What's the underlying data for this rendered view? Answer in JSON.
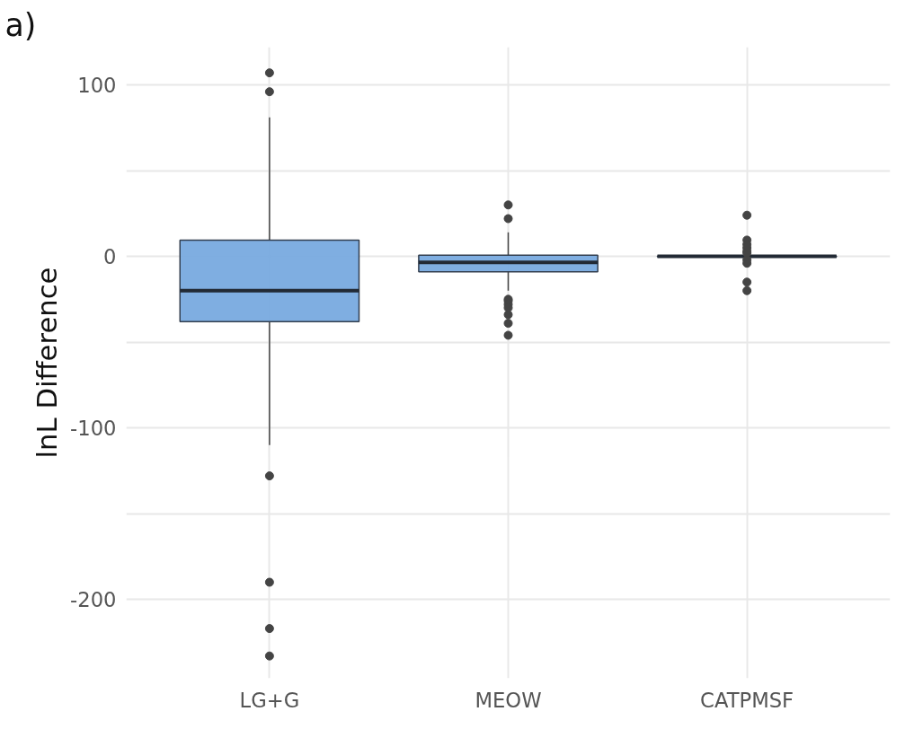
{
  "chart_data": {
    "type": "box",
    "ylabel": "lnL Difference",
    "annotations": [
      "a)"
    ],
    "categories": [
      "LG+G",
      "MEOW",
      "CATPMSF"
    ],
    "color": "#78aadf",
    "boxes": [
      {
        "low": -110,
        "q1": -38,
        "median": -20,
        "q3": 9.5,
        "high": 81,
        "outliers": [
          107,
          96,
          -128,
          -190,
          -217,
          -233
        ]
      },
      {
        "low": -20,
        "q1": -9,
        "median": -3.5,
        "q3": 0.7,
        "high": 14,
        "outliers": [
          30,
          22,
          -25,
          -26,
          -28,
          -30,
          -34,
          -39,
          -46
        ]
      },
      {
        "low": -0.5,
        "q1": -0.2,
        "median": 0,
        "q3": 0.2,
        "high": 0.5,
        "outliers": [
          24,
          9.5,
          7,
          5,
          3,
          2,
          -2,
          -4,
          -15,
          -20
        ]
      }
    ],
    "ylim": [
      -246,
      122
    ],
    "yticks": [
      -200,
      {
        "value": -150,
        "label": null
      },
      -100,
      {
        "value": -50,
        "label": null
      },
      0,
      {
        "value": 50,
        "label": null
      },
      100
    ],
    "grid": true
  }
}
